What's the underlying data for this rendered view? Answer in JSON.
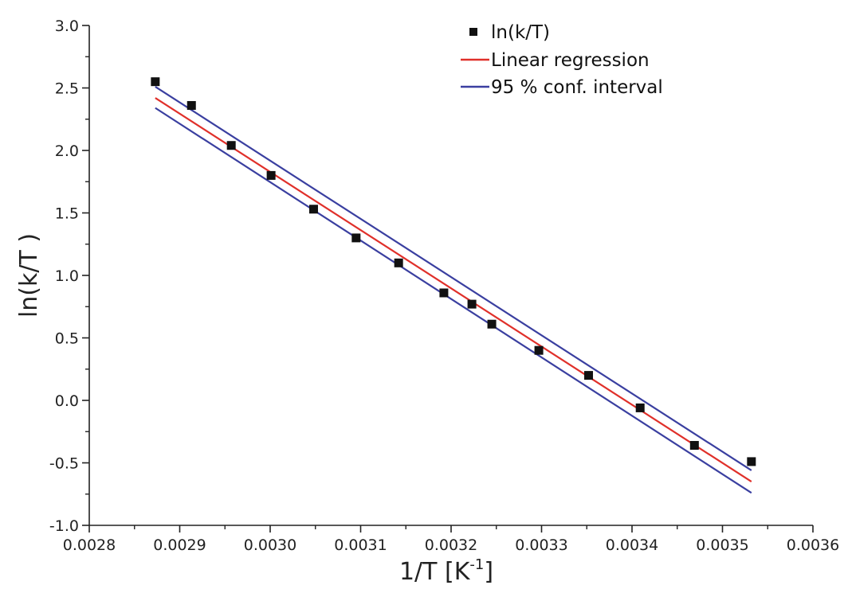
{
  "chart_data": {
    "type": "scatter",
    "xlabel_main": "1/T [K",
    "xlabel_sup": "-1",
    "xlabel_close": "]",
    "ylabel": "ln(k/T )",
    "xlim": [
      0.0028,
      0.0036
    ],
    "ylim": [
      -1.0,
      3.0
    ],
    "x_ticks": [
      0.0028,
      0.0029,
      0.003,
      0.0031,
      0.0032,
      0.0033,
      0.0034,
      0.0035,
      0.0036
    ],
    "x_tick_labels": [
      "0.0028",
      "0.0029",
      "0.0030",
      "0.0031",
      "0.0032",
      "0.0033",
      "0.0034",
      "0.0035",
      "0.0036"
    ],
    "y_ticks": [
      -1.0,
      -0.5,
      0.0,
      0.5,
      1.0,
      1.5,
      2.0,
      2.5,
      3.0
    ],
    "y_tick_labels": [
      "-1.0",
      "-0.5",
      "0.0",
      "0.5",
      "1.0",
      "1.5",
      "2.0",
      "2.5",
      "3.0"
    ],
    "grid": false,
    "legend_position": "top-right",
    "points": {
      "name": "ln(k/T)",
      "color": "#111111",
      "x": [
        0.002873,
        0.002913,
        0.002957,
        0.003001,
        0.003048,
        0.003095,
        0.003142,
        0.003192,
        0.003223,
        0.003245,
        0.003297,
        0.003352,
        0.003409,
        0.003469,
        0.003532
      ],
      "y": [
        2.55,
        2.36,
        2.04,
        1.8,
        1.53,
        1.3,
        1.1,
        0.86,
        0.77,
        0.61,
        0.4,
        0.2,
        -0.06,
        -0.36,
        -0.49
      ]
    },
    "regression": {
      "name": "Linear regression",
      "color": "#e0302a",
      "x": [
        0.002873,
        0.003532
      ],
      "y": [
        2.42,
        -0.65
      ]
    },
    "confidence_interval": {
      "name": "95 % conf. interval",
      "color": "#3a3fa0",
      "upper": {
        "x": [
          0.002873,
          0.003532
        ],
        "y": [
          2.51,
          -0.56
        ]
      },
      "lower": {
        "x": [
          0.002873,
          0.003532
        ],
        "y": [
          2.34,
          -0.74
        ]
      }
    }
  }
}
